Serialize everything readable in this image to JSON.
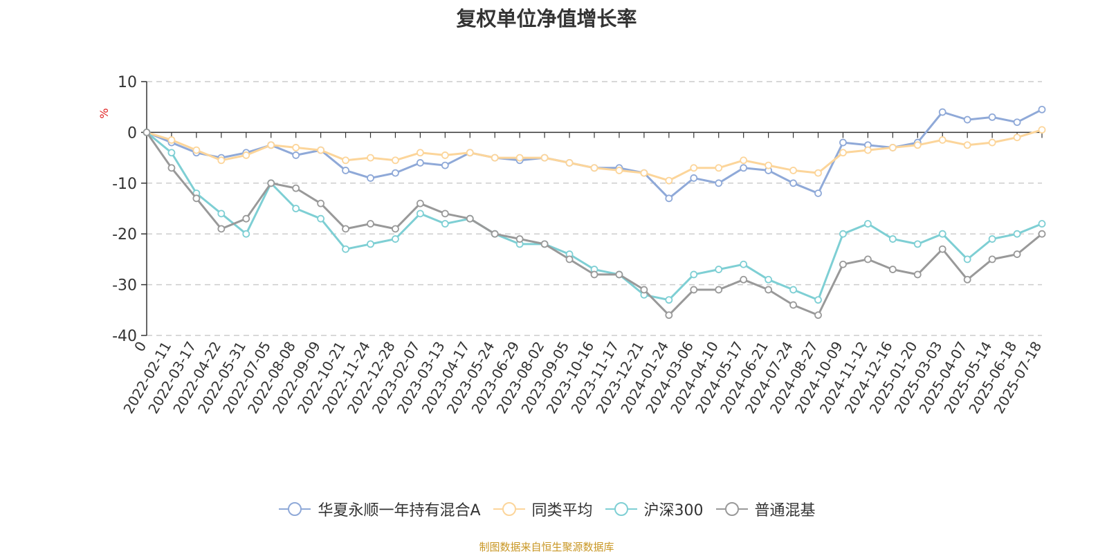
{
  "chart_data": {
    "type": "line",
    "title": "复权单位净值增长率",
    "ylabel": "%",
    "ylim": [
      -40,
      10
    ],
    "yticks": [
      10,
      0,
      -10,
      -20,
      -30,
      -40
    ],
    "grid": true,
    "legend_position": "bottom-center",
    "x": [
      "0",
      "2022-02-11",
      "2022-03-17",
      "2022-04-22",
      "2022-05-31",
      "2022-07-05",
      "2022-08-08",
      "2022-09-09",
      "2022-10-21",
      "2022-11-24",
      "2022-12-28",
      "2023-02-07",
      "2023-03-13",
      "2023-04-17",
      "2023-05-24",
      "2023-06-29",
      "2023-08-02",
      "2023-09-05",
      "2023-10-16",
      "2023-11-17",
      "2023-12-21",
      "2024-01-24",
      "2024-03-06",
      "2024-04-10",
      "2024-05-17",
      "2024-06-21",
      "2024-07-24",
      "2024-08-27",
      "2024-10-09",
      "2024-11-12",
      "2024-12-16",
      "2025-01-20",
      "2025-03-03",
      "2025-04-07",
      "2025-05-14",
      "2025-06-18",
      "2025-07-18"
    ],
    "series": [
      {
        "name": "华夏永顺一年持有混合A",
        "color": "#8fa9d8",
        "values": [
          0,
          -2,
          -4,
          -5,
          -4,
          -2.5,
          -4.5,
          -3.5,
          -7.5,
          -9,
          -8,
          -6,
          -6.5,
          -4,
          -5,
          -5.5,
          -5,
          -6,
          -7,
          -7,
          -8,
          -13,
          -9,
          -10,
          -7,
          -7.5,
          -10,
          -12,
          -2,
          -2.5,
          -3,
          -2,
          4,
          2.5,
          3,
          2,
          4.5
        ]
      },
      {
        "name": "同类平均",
        "color": "#fcd59a",
        "values": [
          0,
          -1.5,
          -3.5,
          -5.5,
          -4.5,
          -2.5,
          -3,
          -3.5,
          -5.5,
          -5,
          -5.5,
          -4,
          -4.5,
          -4,
          -5,
          -5,
          -5,
          -6,
          -7,
          -7.5,
          -8,
          -9.5,
          -7,
          -7,
          -5.5,
          -6.5,
          -7.5,
          -8,
          -4,
          -3.5,
          -3,
          -2.5,
          -1.5,
          -2.5,
          -2,
          -1,
          0.5
        ]
      },
      {
        "name": "沪深300",
        "color": "#7ecfd4",
        "values": [
          0,
          -4,
          -12,
          -16,
          -20,
          -10,
          -15,
          -17,
          -23,
          -22,
          -21,
          -16,
          -18,
          -17,
          -20,
          -22,
          -22,
          -24,
          -27,
          -28,
          -32,
          -33,
          -28,
          -27,
          -26,
          -29,
          -31,
          -33,
          -20,
          -18,
          -21,
          -22,
          -20,
          -25,
          -21,
          -20,
          -18
        ]
      },
      {
        "name": "普通混基",
        "color": "#999999",
        "values": [
          0,
          -7,
          -13,
          -19,
          -17,
          -10,
          -11,
          -14,
          -19,
          -18,
          -19,
          -14,
          -16,
          -17,
          -20,
          -21,
          -22,
          -25,
          -28,
          -28,
          -31,
          -36,
          -31,
          -31,
          -29,
          -31,
          -34,
          -36,
          -26,
          -25,
          -27,
          -28,
          -23,
          -29,
          -25,
          -24,
          -20
        ]
      }
    ]
  },
  "y_unit": "%",
  "source_note": "制图数据来自恒生聚源数据库"
}
